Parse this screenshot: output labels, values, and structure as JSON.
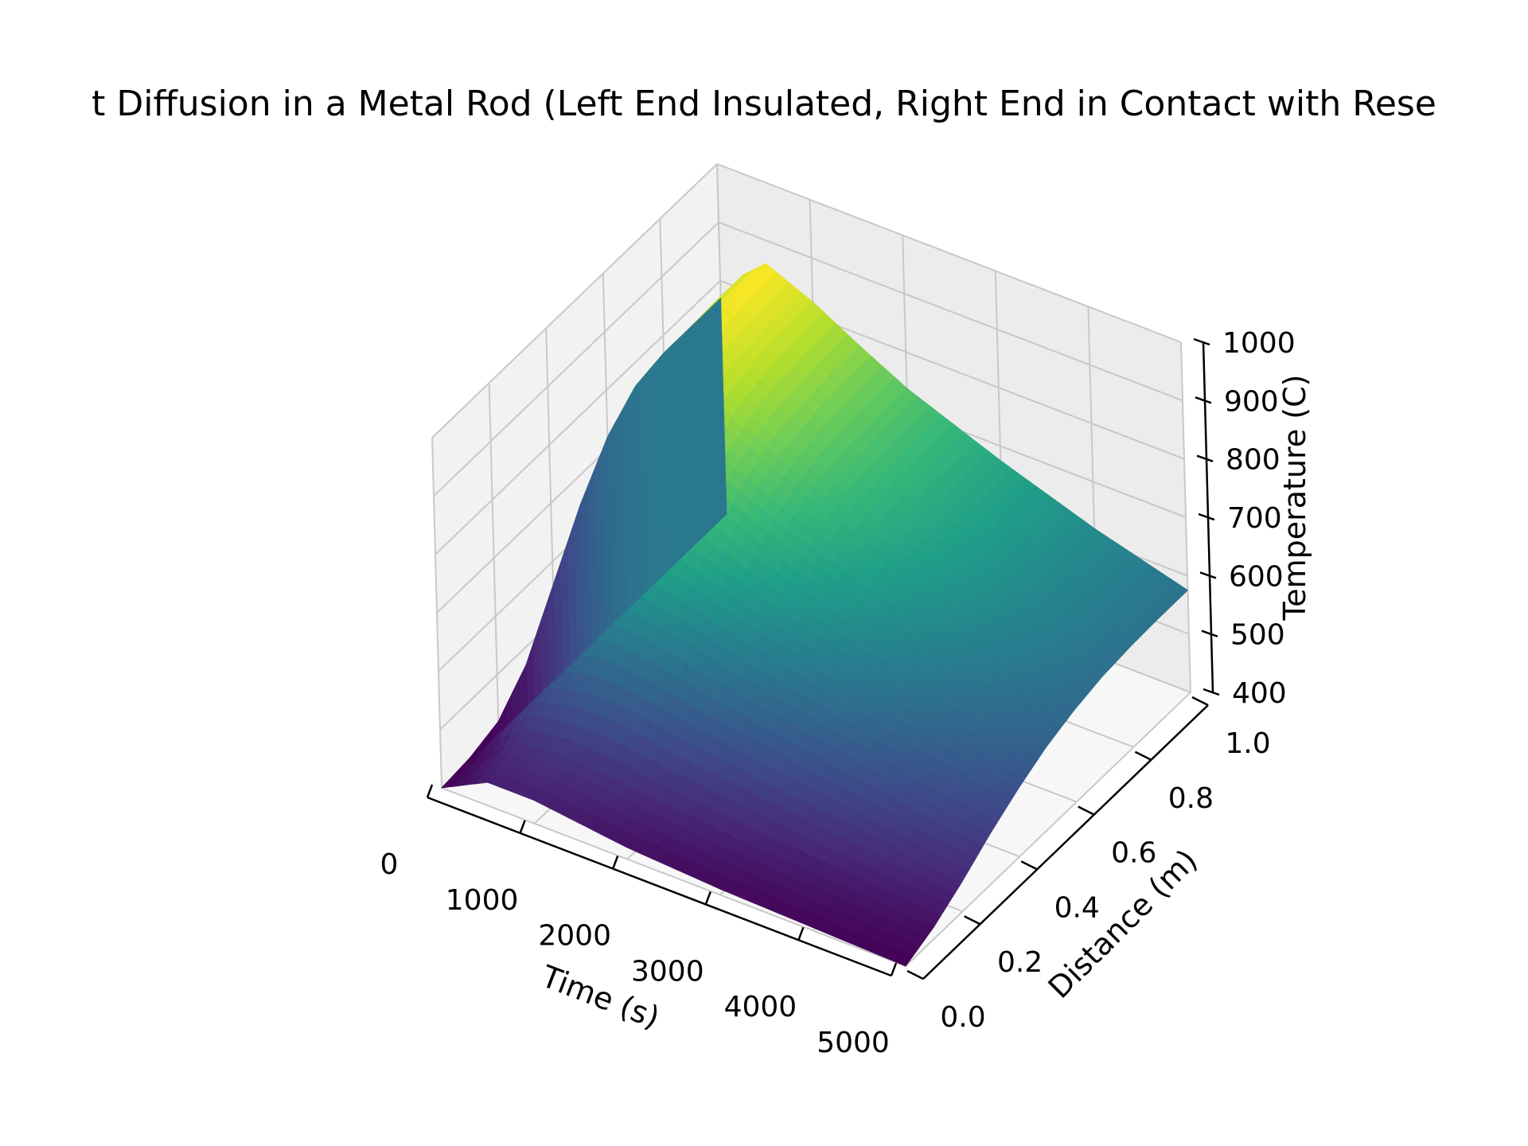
{
  "chart_data": {
    "type": "surface3d",
    "title": "Heat Diffusion in a Metal Rod (Left End Insulated, Right End in Contact with Reservoir)",
    "title_visible": "t Diffusion in a Metal Rod (Left End Insulated, Right End in Contact with Rese",
    "xlabel": "Time (s)",
    "ylabel": "Distance (m)",
    "zlabel": "Temperature (C)",
    "xlim": [
      0,
      5000
    ],
    "ylim": [
      0,
      1
    ],
    "zlim": [
      400,
      1000
    ],
    "x_ticks": [
      "0",
      "1000",
      "2000",
      "3000",
      "4000",
      "5000"
    ],
    "y_ticks": [
      "0.0",
      "0.2",
      "0.4",
      "0.6",
      "0.8",
      "1.0"
    ],
    "z_ticks": [
      "400",
      "500",
      "600",
      "700",
      "800",
      "900",
      "1000"
    ],
    "colormap": "viridis",
    "grid": true,
    "panes": "light-gray",
    "surface": {
      "distance": [
        0.0,
        0.1,
        0.2,
        0.3,
        0.4,
        0.5,
        0.6,
        0.7,
        0.8,
        0.9,
        1.0
      ],
      "series": [
        {
          "time": 0,
          "temperature": [
            400,
            405,
            420,
            470,
            560,
            650,
            720,
            760,
            770,
            770,
            770
          ]
        },
        {
          "time": 250,
          "temperature": [
            420,
            430,
            470,
            540,
            620,
            700,
            760,
            800,
            820,
            825,
            825
          ]
        },
        {
          "time": 500,
          "temperature": [
            440,
            460,
            510,
            580,
            660,
            730,
            790,
            830,
            850,
            860,
            860
          ]
        },
        {
          "time": 1000,
          "temperature": [
            440,
            470,
            530,
            600,
            670,
            730,
            775,
            805,
            820,
            825,
            825
          ]
        },
        {
          "time": 1500,
          "temperature": [
            430,
            465,
            525,
            590,
            650,
            700,
            740,
            765,
            775,
            780,
            780
          ]
        },
        {
          "time": 2000,
          "temperature": [
            420,
            455,
            510,
            570,
            625,
            670,
            705,
            725,
            735,
            738,
            738
          ]
        },
        {
          "time": 3000,
          "temperature": [
            410,
            440,
            490,
            540,
            585,
            620,
            648,
            665,
            672,
            675,
            675
          ]
        },
        {
          "time": 4000,
          "temperature": [
            405,
            430,
            470,
            510,
            545,
            575,
            598,
            612,
            618,
            620,
            620
          ]
        },
        {
          "time": 5000,
          "temperature": [
            400,
            420,
            450,
            485,
            515,
            540,
            557,
            568,
            573,
            575,
            575
          ]
        }
      ]
    }
  }
}
